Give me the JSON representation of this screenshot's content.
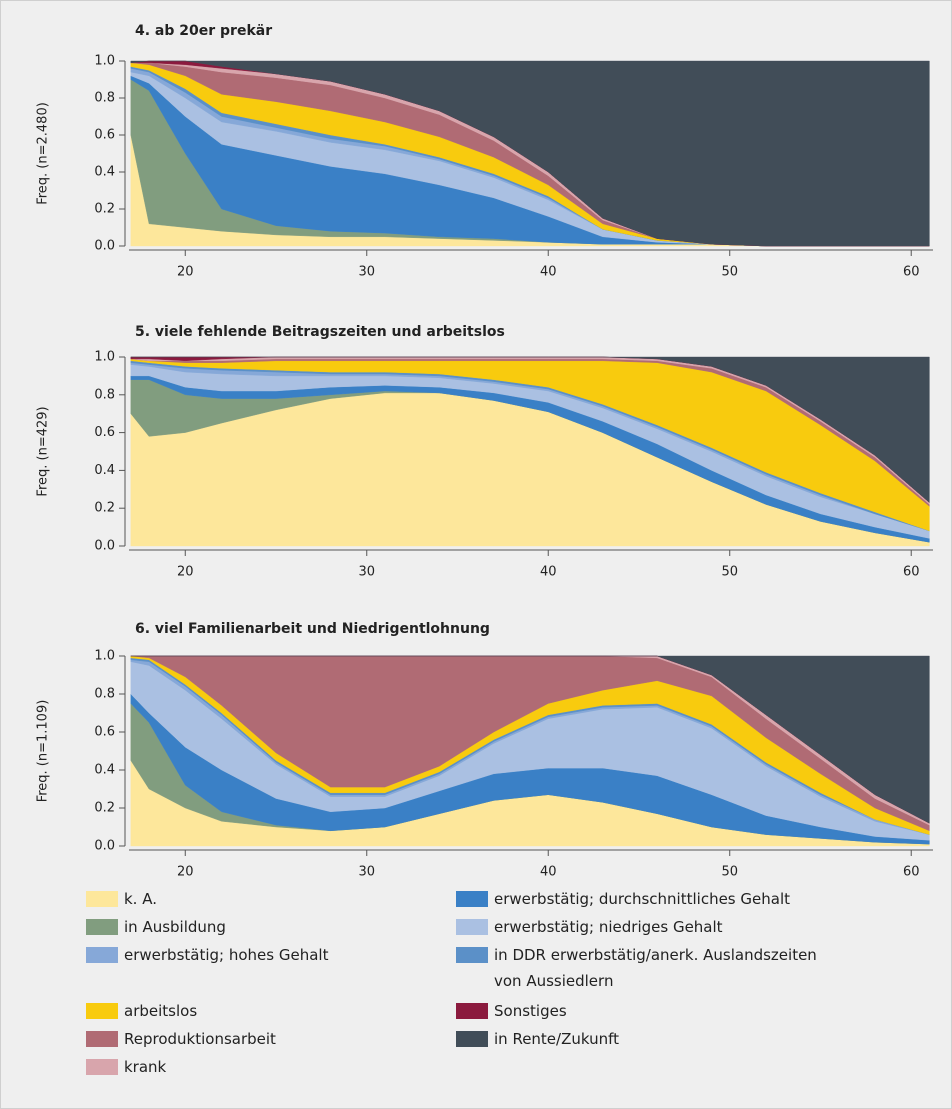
{
  "chart_data": [
    {
      "type": "area",
      "title": "4. ab 20er prekär",
      "y_label": "Freq. (n=2.480)",
      "x": [
        17,
        18,
        20,
        22,
        25,
        28,
        31,
        34,
        37,
        40,
        43,
        46,
        49,
        52,
        55,
        58,
        61
      ],
      "xlim": [
        16.9,
        61.2
      ],
      "xticks": [
        20,
        30,
        40,
        50,
        60
      ],
      "ylim": [
        0,
        1
      ],
      "yticks": [
        {
          "value": 0,
          "label": "0.0"
        },
        0.2,
        0.4,
        0.6,
        0.8,
        {
          "value": 1,
          "label": "1.0"
        }
      ],
      "series": [
        {
          "values": [
            0.6,
            0.12,
            0.1,
            0.08,
            0.06,
            0.05,
            0.05,
            0.04,
            0.03,
            0.02,
            0.01,
            0.01,
            0.01,
            0,
            0,
            0,
            0
          ]
        },
        {
          "values": [
            0.3,
            0.72,
            0.4,
            0.12,
            0.05,
            0.03,
            0.02,
            0.01,
            0.01,
            0,
            0,
            0,
            0,
            0,
            0,
            0,
            0
          ]
        },
        {
          "values": [
            0.02,
            0.04,
            0.2,
            0.35,
            0.38,
            0.35,
            0.32,
            0.28,
            0.22,
            0.14,
            0.04,
            0.01,
            0,
            0,
            0,
            0,
            0
          ]
        },
        {
          "values": [
            0.02,
            0.04,
            0.1,
            0.12,
            0.13,
            0.13,
            0.13,
            0.13,
            0.11,
            0.09,
            0.04,
            0.01,
            0,
            0,
            0,
            0,
            0
          ]
        },
        {
          "values": [
            0.02,
            0.02,
            0.03,
            0.03,
            0.02,
            0.02,
            0.02,
            0.01,
            0.01,
            0.01,
            0,
            0,
            0,
            0,
            0,
            0,
            0
          ]
        },
        {
          "values": [
            0.01,
            0.01,
            0.02,
            0.02,
            0.02,
            0.02,
            0.01,
            0.01,
            0.01,
            0.01,
            0,
            0,
            0,
            0,
            0,
            0,
            0
          ]
        },
        {
          "values": [
            0.02,
            0.03,
            0.07,
            0.1,
            0.12,
            0.13,
            0.12,
            0.11,
            0.09,
            0.06,
            0.03,
            0.01,
            0,
            0,
            0,
            0,
            0
          ]
        },
        {
          "values": [
            0,
            0.01,
            0.05,
            0.12,
            0.13,
            0.14,
            0.13,
            0.12,
            0.09,
            0.05,
            0.02,
            0,
            0,
            0,
            0,
            0,
            0
          ]
        },
        {
          "values": [
            0,
            0,
            0.01,
            0.02,
            0.02,
            0.02,
            0.02,
            0.02,
            0.02,
            0.02,
            0.01,
            0,
            0,
            0,
            0,
            0,
            0
          ]
        },
        {
          "values": [
            0,
            0.01,
            0.02,
            0.01,
            0,
            0,
            0,
            0,
            0,
            0,
            0,
            0,
            0,
            0,
            0,
            0,
            0
          ]
        },
        {
          "values": [
            0.01,
            0,
            0,
            0.03,
            0.07,
            0.11,
            0.18,
            0.27,
            0.41,
            0.6,
            0.85,
            0.96,
            0.99,
            1,
            1,
            1,
            1
          ]
        }
      ]
    },
    {
      "type": "area",
      "title": "5. viele fehlende Beitragszeiten und arbeitslos",
      "y_label": "Freq. (n=429)",
      "x": [
        17,
        18,
        20,
        22,
        25,
        28,
        31,
        34,
        37,
        40,
        43,
        46,
        49,
        52,
        55,
        58,
        61
      ],
      "xlim": [
        16.9,
        61.2
      ],
      "xticks": [
        20,
        30,
        40,
        50,
        60
      ],
      "ylim": [
        0,
        1
      ],
      "yticks": [
        {
          "value": 0,
          "label": "0.0"
        },
        0.2,
        0.4,
        0.6,
        0.8,
        {
          "value": 1,
          "label": "1.0"
        }
      ],
      "series": [
        {
          "values": [
            0.7,
            0.58,
            0.6,
            0.65,
            0.72,
            0.78,
            0.81,
            0.81,
            0.77,
            0.71,
            0.6,
            0.47,
            0.34,
            0.22,
            0.13,
            0.07,
            0.02
          ]
        },
        {
          "values": [
            0.18,
            0.3,
            0.2,
            0.13,
            0.06,
            0.02,
            0.01,
            0,
            0,
            0,
            0,
            0,
            0,
            0,
            0,
            0,
            0
          ]
        },
        {
          "values": [
            0.02,
            0.02,
            0.04,
            0.04,
            0.04,
            0.04,
            0.03,
            0.03,
            0.04,
            0.05,
            0.06,
            0.07,
            0.06,
            0.05,
            0.04,
            0.03,
            0.02
          ]
        },
        {
          "values": [
            0.06,
            0.05,
            0.08,
            0.09,
            0.08,
            0.06,
            0.05,
            0.05,
            0.05,
            0.06,
            0.07,
            0.08,
            0.1,
            0.1,
            0.09,
            0.07,
            0.04
          ]
        },
        {
          "values": [
            0.01,
            0.01,
            0.02,
            0.02,
            0.02,
            0.01,
            0.01,
            0.01,
            0.01,
            0.01,
            0.01,
            0.01,
            0.01,
            0.01,
            0.01,
            0,
            0
          ]
        },
        {
          "values": [
            0.01,
            0.01,
            0.01,
            0.01,
            0.01,
            0.01,
            0.01,
            0.01,
            0.01,
            0.01,
            0.01,
            0.01,
            0.01,
            0.01,
            0.01,
            0.01,
            0
          ]
        },
        {
          "values": [
            0.01,
            0.01,
            0.02,
            0.03,
            0.05,
            0.06,
            0.06,
            0.07,
            0.1,
            0.14,
            0.23,
            0.33,
            0.4,
            0.43,
            0.36,
            0.27,
            0.13
          ]
        },
        {
          "values": [
            0,
            0,
            0.01,
            0.01,
            0.01,
            0.01,
            0.01,
            0.01,
            0.01,
            0.01,
            0.01,
            0.01,
            0.02,
            0.02,
            0.02,
            0.02,
            0.01
          ]
        },
        {
          "values": [
            0,
            0.01,
            0,
            0.01,
            0.01,
            0.01,
            0.01,
            0.01,
            0.01,
            0.01,
            0.01,
            0.01,
            0.01,
            0.01,
            0.01,
            0.01,
            0.01
          ]
        },
        {
          "values": [
            0.01,
            0.01,
            0.02,
            0.01,
            0,
            0,
            0,
            0,
            0,
            0,
            0,
            0,
            0,
            0,
            0,
            0,
            0
          ]
        },
        {
          "values": [
            0,
            0,
            0,
            0,
            0,
            0,
            0,
            0,
            0,
            0,
            0,
            0.01,
            0.05,
            0.15,
            0.33,
            0.52,
            0.77
          ]
        }
      ]
    },
    {
      "type": "area",
      "title": "6. viel Familienarbeit und Niedrigentlohnung",
      "y_label": "Freq. (n=1.109)",
      "x": [
        17,
        18,
        20,
        22,
        25,
        28,
        31,
        34,
        37,
        40,
        43,
        46,
        49,
        52,
        55,
        58,
        61
      ],
      "xlim": [
        16.9,
        61.2
      ],
      "xticks": [
        20,
        30,
        40,
        50,
        60
      ],
      "ylim": [
        0,
        1
      ],
      "yticks": [
        {
          "value": 0,
          "label": "0.0"
        },
        0.2,
        0.4,
        0.6,
        0.8,
        {
          "value": 1,
          "label": "1.0"
        }
      ],
      "series": [
        {
          "values": [
            0.45,
            0.3,
            0.2,
            0.13,
            0.1,
            0.08,
            0.1,
            0.17,
            0.24,
            0.27,
            0.23,
            0.17,
            0.1,
            0.06,
            0.04,
            0.02,
            0.01
          ]
        },
        {
          "values": [
            0.3,
            0.35,
            0.12,
            0.05,
            0.01,
            0,
            0,
            0,
            0,
            0,
            0,
            0,
            0,
            0,
            0,
            0,
            0
          ]
        },
        {
          "values": [
            0.05,
            0.05,
            0.2,
            0.22,
            0.14,
            0.1,
            0.1,
            0.12,
            0.14,
            0.14,
            0.18,
            0.2,
            0.17,
            0.1,
            0.06,
            0.03,
            0.02
          ]
        },
        {
          "values": [
            0.17,
            0.25,
            0.3,
            0.27,
            0.18,
            0.08,
            0.06,
            0.08,
            0.16,
            0.26,
            0.31,
            0.36,
            0.35,
            0.26,
            0.16,
            0.08,
            0.03
          ]
        },
        {
          "values": [
            0.01,
            0.02,
            0.02,
            0.02,
            0.01,
            0.01,
            0.01,
            0.01,
            0.01,
            0.01,
            0.01,
            0.01,
            0.01,
            0.01,
            0.01,
            0.01,
            0
          ]
        },
        {
          "values": [
            0.01,
            0.01,
            0.01,
            0.01,
            0.01,
            0.01,
            0.01,
            0.01,
            0.01,
            0.01,
            0.01,
            0.01,
            0.01,
            0.01,
            0.01,
            0,
            0
          ]
        },
        {
          "values": [
            0.01,
            0.01,
            0.04,
            0.04,
            0.04,
            0.03,
            0.03,
            0.03,
            0.04,
            0.06,
            0.08,
            0.12,
            0.15,
            0.13,
            0.1,
            0.06,
            0.02
          ]
        },
        {
          "values": [
            0,
            0.01,
            0.11,
            0.26,
            0.51,
            0.69,
            0.69,
            0.58,
            0.4,
            0.25,
            0.18,
            0.12,
            0.1,
            0.1,
            0.08,
            0.05,
            0.03
          ]
        },
        {
          "values": [
            0,
            0,
            0,
            0,
            0,
            0,
            0,
            0,
            0,
            0,
            0,
            0.01,
            0.01,
            0.02,
            0.02,
            0.02,
            0.01
          ]
        },
        {
          "values": [
            0,
            0,
            0,
            0,
            0,
            0,
            0,
            0,
            0,
            0,
            0,
            0,
            0,
            0,
            0,
            0,
            0
          ]
        },
        {
          "values": [
            0,
            0,
            0,
            0,
            0,
            0,
            0,
            0,
            0,
            0,
            0,
            0,
            0.1,
            0.31,
            0.52,
            0.73,
            0.88
          ]
        }
      ]
    }
  ],
  "legend": [
    {
      "name": "k. A.",
      "color": "#fde79b"
    },
    {
      "name": "in Ausbildung",
      "color": "#819d7f"
    },
    {
      "name": "erwerbstätig; durchschnittliches Gehalt",
      "color": "#3a80c6"
    },
    {
      "name": "erwerbstätig; niedriges Gehalt",
      "color": "#aac0e2"
    },
    {
      "name": "erwerbstätig; hohes Gehalt",
      "color": "#86a8d8"
    },
    {
      "name": "in DDR erwerbstätig/anerk. Auslandszeiten von Aussiedlern",
      "color": "#5b90c8"
    },
    {
      "name": "arbeitslos",
      "color": "#f8cb0e"
    },
    {
      "name": "Reproduktionsarbeit",
      "color": "#b06b74"
    },
    {
      "name": "krank",
      "color": "#d8a5ac"
    },
    {
      "name": "Sonstiges",
      "color": "#8b1a3e"
    },
    {
      "name": "in Rente/Zukunft",
      "color": "#414d58"
    }
  ]
}
